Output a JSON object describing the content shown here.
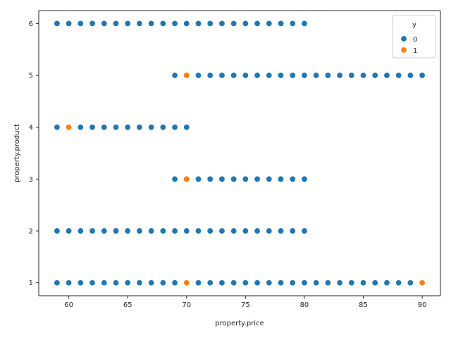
{
  "chart_data": {
    "type": "scatter",
    "xlabel": "property.price",
    "ylabel": "property.product",
    "xlim": [
      57.45,
      91.55
    ],
    "ylim": [
      0.75,
      6.25
    ],
    "xticks": [
      60,
      65,
      70,
      75,
      80,
      85,
      90
    ],
    "yticks": [
      1,
      2,
      3,
      4,
      5,
      6
    ],
    "grid": false,
    "legend": {
      "title": "y",
      "placement": "top-right",
      "entries": [
        "0",
        "1"
      ]
    },
    "colors": {
      "0": "#1f77b4",
      "1": "#ff7f0e"
    },
    "rows": [
      {
        "product": 6,
        "x_min": 59,
        "x_max": 80,
        "orange": []
      },
      {
        "product": 5,
        "x_min": 69,
        "x_max": 90,
        "orange": [
          70
        ]
      },
      {
        "product": 4,
        "x_min": 59,
        "x_max": 70,
        "orange": [
          60
        ]
      },
      {
        "product": 3,
        "x_min": 69,
        "x_max": 80,
        "orange": [
          70
        ]
      },
      {
        "product": 2,
        "x_min": 59,
        "x_max": 80,
        "orange": []
      },
      {
        "product": 1,
        "x_min": 59,
        "x_max": 90,
        "orange": [
          70,
          90
        ]
      }
    ]
  }
}
